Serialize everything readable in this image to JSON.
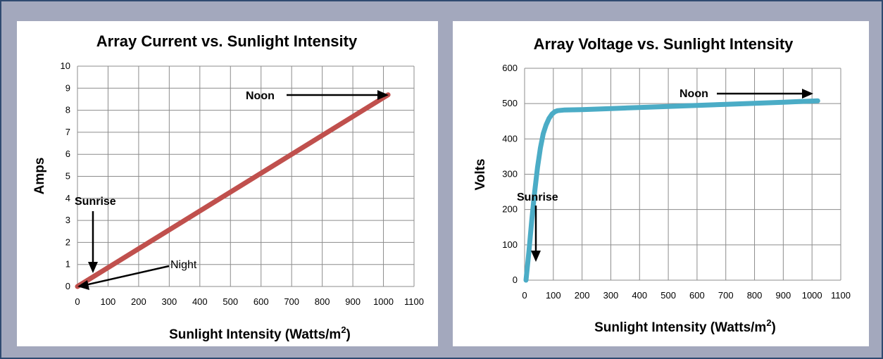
{
  "chart_data": [
    {
      "type": "line",
      "title": "Array Current vs. Sunlight Intensity",
      "xlabel": "Sunlight Intensity (Watts/m²)",
      "ylabel": "Amps",
      "xlim": [
        0,
        1100
      ],
      "ylim": [
        0,
        10
      ],
      "xticks": [
        0,
        100,
        200,
        300,
        400,
        500,
        600,
        700,
        800,
        900,
        1000,
        1100
      ],
      "yticks": [
        0,
        1,
        2,
        3,
        4,
        5,
        6,
        7,
        8,
        9,
        10
      ],
      "grid": true,
      "color": "#c0504d",
      "series": [
        {
          "x": [
            0,
            1015
          ],
          "y": [
            0,
            8.7
          ]
        }
      ],
      "annotations": [
        {
          "text": "Noon",
          "x": 1015,
          "y": 8.7
        },
        {
          "text": "Sunrise",
          "x": 50,
          "y": 0.45
        },
        {
          "text": "Night",
          "x": 0,
          "y": 0
        }
      ]
    },
    {
      "type": "line",
      "title": "Array Voltage vs. Sunlight Intensity",
      "xlabel": "Sunlight Intensity (Watts/m²)",
      "ylabel": "Volts",
      "xlim": [
        0,
        1100
      ],
      "ylim": [
        0,
        600
      ],
      "xticks": [
        0,
        100,
        200,
        300,
        400,
        500,
        600,
        700,
        800,
        900,
        1000,
        1100
      ],
      "yticks": [
        0,
        100,
        200,
        300,
        400,
        500,
        600
      ],
      "grid": true,
      "color": "#4bacc6",
      "series": [
        {
          "x": [
            5,
            15,
            25,
            35,
            45,
            55,
            65,
            75,
            85,
            95,
            105,
            115,
            140,
            200,
            300,
            500,
            700,
            900,
            1020
          ],
          "y": [
            0,
            80,
            170,
            250,
            320,
            375,
            415,
            440,
            458,
            470,
            477,
            480,
            482,
            483,
            486,
            492,
            498,
            504,
            508
          ]
        }
      ],
      "annotations": [
        {
          "text": "Noon",
          "x": 1020,
          "y": 508
        },
        {
          "text": "Sunrise",
          "x": 30,
          "y": 60
        }
      ]
    }
  ]
}
